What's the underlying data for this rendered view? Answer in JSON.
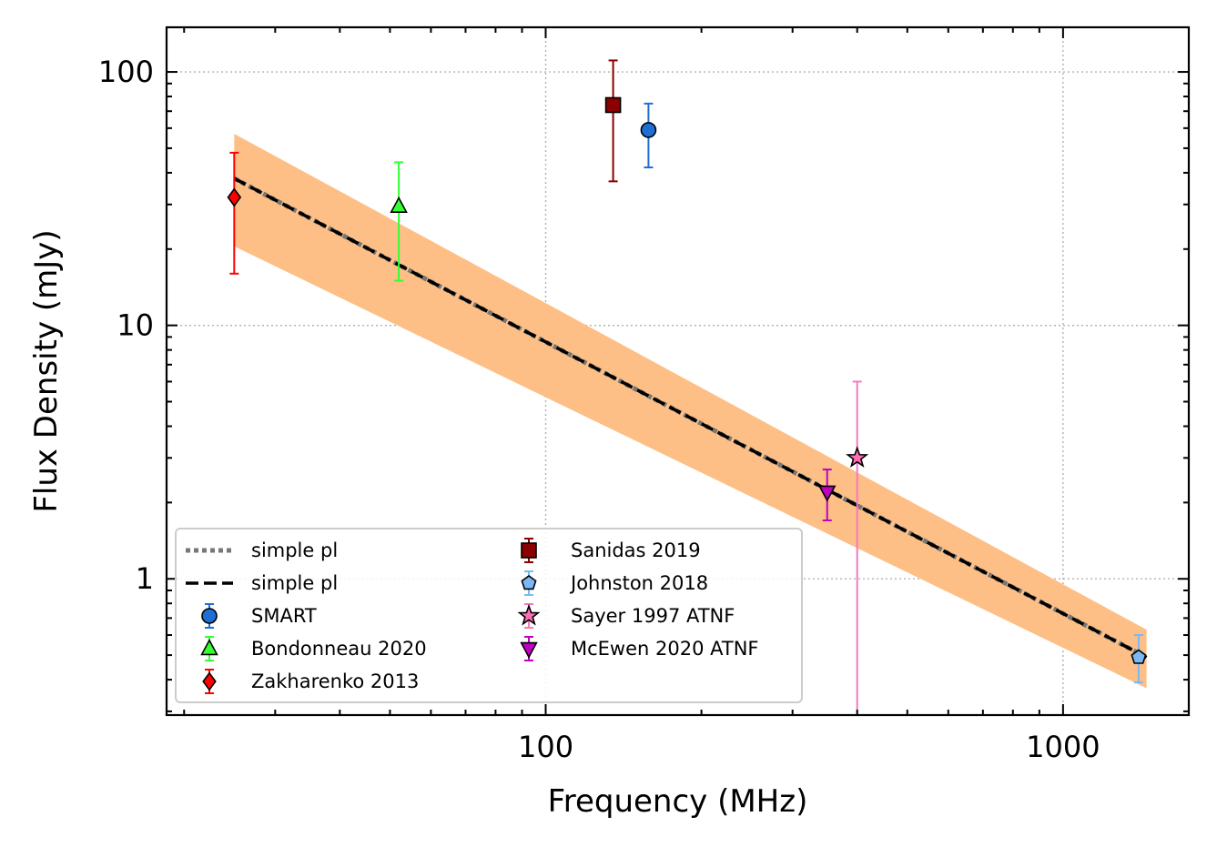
{
  "chart_data": {
    "type": "scatter",
    "xlabel": "Frequency (MHz)",
    "ylabel": "Flux Density (mJy)",
    "xscale": "log",
    "yscale": "log",
    "xlim": [
      18.5,
      1750
    ],
    "ylim": [
      0.29,
      150
    ],
    "grid": true,
    "legend_position": "lower-left",
    "x_ticks": [
      100,
      1000
    ],
    "x_tick_labels": [
      "100",
      "1000"
    ],
    "y_ticks": [
      1,
      10,
      100
    ],
    "y_tick_labels": [
      "1",
      "10",
      "100"
    ],
    "fit_lines": [
      {
        "name": "simple pl",
        "style": "dotted",
        "color": "#777777",
        "x": [
          25,
          1450
        ],
        "y": [
          38,
          0.49
        ]
      },
      {
        "name": "simple pl",
        "style": "dashed",
        "color": "#000000",
        "x": [
          25,
          1450
        ],
        "y": [
          38,
          0.49
        ]
      }
    ],
    "uncertainty_band": {
      "color": "#fdbf86",
      "x": [
        25,
        1450
      ],
      "upper": [
        57,
        0.63
      ],
      "lower": [
        20.5,
        0.37
      ]
    },
    "series": [
      {
        "name": "SMART",
        "marker": "circle",
        "color": "#1f6ed4",
        "errcolor": "#1f6ed4",
        "points": [
          {
            "x": 158,
            "y": 59,
            "yerr_low": 42,
            "yerr_high": 75
          }
        ]
      },
      {
        "name": "Bondonneau 2020",
        "marker": "triangle-up",
        "color": "#33ff33",
        "errcolor": "#33ff33",
        "points": [
          {
            "x": 52,
            "y": 29.5,
            "yerr_low": 15,
            "yerr_high": 44
          }
        ]
      },
      {
        "name": "Zakharenko 2013",
        "marker": "diamond",
        "color": "#ff0000",
        "errcolor": "#ff0000",
        "points": [
          {
            "x": 25,
            "y": 32,
            "yerr_low": 16,
            "yerr_high": 48
          }
        ]
      },
      {
        "name": "Sanidas 2019",
        "marker": "square",
        "color": "#8b0000",
        "errcolor": "#8b0000",
        "points": [
          {
            "x": 135,
            "y": 74,
            "yerr_low": 37,
            "yerr_high": 111
          }
        ]
      },
      {
        "name": "Johnston 2018",
        "marker": "pentagon",
        "color": "#7ab8f5",
        "errcolor": "#7ab8f5",
        "points": [
          {
            "x": 1400,
            "y": 0.49,
            "yerr_low": 0.39,
            "yerr_high": 0.6
          }
        ]
      },
      {
        "name": "Sayer 1997 ATNF",
        "marker": "star",
        "color": "#ff6eb4",
        "errcolor": "#f47ac0",
        "points": [
          {
            "x": 400,
            "y": 3,
            "yerr_low": 0.1,
            "yerr_high": 6
          }
        ]
      },
      {
        "name": "McEwen 2020 ATNF",
        "marker": "triangle-down",
        "color": "#c000c0",
        "errcolor": "#c000c0",
        "points": [
          {
            "x": 350,
            "y": 2.2,
            "yerr_low": 1.7,
            "yerr_high": 2.7
          }
        ]
      }
    ],
    "legend": [
      {
        "label": "simple pl",
        "kind": "line",
        "style": "dotted",
        "color": "#777777"
      },
      {
        "label": "simple pl",
        "kind": "line",
        "style": "dashed",
        "color": "#000000"
      },
      {
        "label": "SMART",
        "kind": "marker",
        "marker": "circle",
        "color": "#1f6ed4"
      },
      {
        "label": "Bondonneau 2020",
        "kind": "marker",
        "marker": "triangle-up",
        "color": "#33ff33"
      },
      {
        "label": "Zakharenko 2013",
        "kind": "marker",
        "marker": "diamond",
        "color": "#ff0000"
      },
      {
        "label": "Sanidas 2019",
        "kind": "marker",
        "marker": "square",
        "color": "#8b0000"
      },
      {
        "label": "Johnston 2018",
        "kind": "marker",
        "marker": "pentagon",
        "color": "#7ab8f5"
      },
      {
        "label": "Sayer 1997 ATNF",
        "kind": "marker",
        "marker": "star",
        "color": "#ff6eb4"
      },
      {
        "label": "McEwen 2020 ATNF",
        "kind": "marker",
        "marker": "triangle-down",
        "color": "#c000c0"
      }
    ]
  }
}
